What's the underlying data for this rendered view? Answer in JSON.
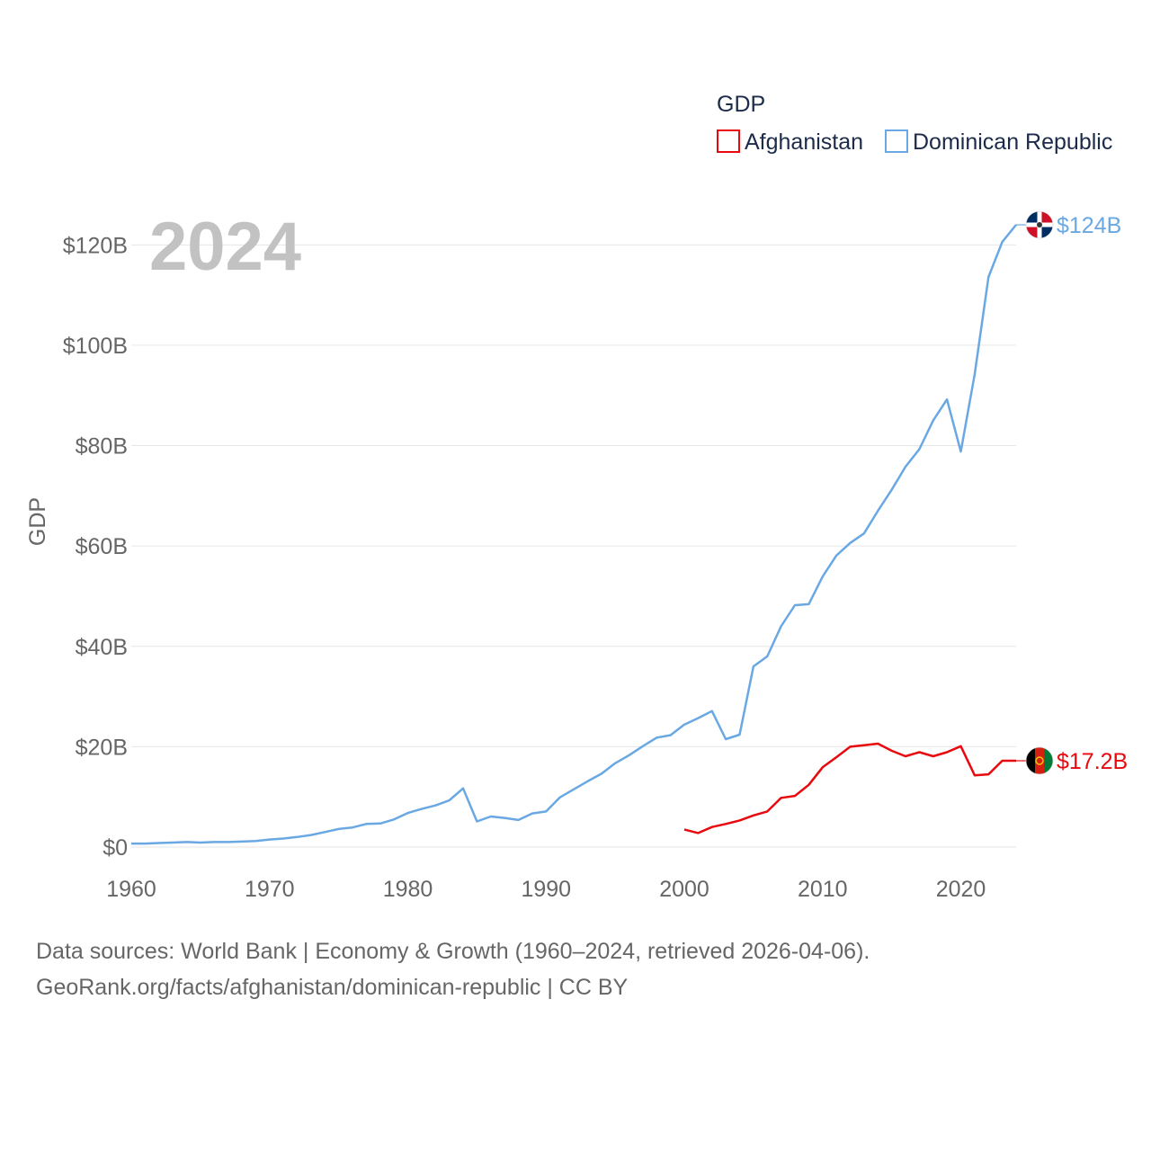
{
  "chart_data": {
    "type": "line",
    "title": "",
    "year_label": "2024",
    "ylabel": "GDP",
    "xlabel": "",
    "xlim": [
      1960,
      2024
    ],
    "ylim": [
      0,
      124
    ],
    "x_ticks": [
      1960,
      1970,
      1980,
      1990,
      2000,
      2010,
      2020
    ],
    "y_ticks": [
      {
        "value": 0,
        "label": "$0"
      },
      {
        "value": 20,
        "label": "$20B"
      },
      {
        "value": 40,
        "label": "$40B"
      },
      {
        "value": 60,
        "label": "$60B"
      },
      {
        "value": 80,
        "label": "$80B"
      },
      {
        "value": 100,
        "label": "$100B"
      },
      {
        "value": 120,
        "label": "$120B"
      }
    ],
    "legend": {
      "title": "GDP",
      "position": "top-right"
    },
    "series": [
      {
        "name": "Afghanistan",
        "color": "#e8090f",
        "end_label": "$17.2B",
        "flag": "afghanistan-flag-icon",
        "x": [
          2000,
          2001,
          2002,
          2003,
          2004,
          2005,
          2006,
          2007,
          2008,
          2009,
          2010,
          2011,
          2012,
          2013,
          2014,
          2015,
          2016,
          2017,
          2018,
          2019,
          2020,
          2021,
          2022,
          2023,
          2024
        ],
        "values": [
          3.5,
          2.8,
          4.0,
          4.6,
          5.3,
          6.3,
          7.1,
          9.8,
          10.2,
          12.4,
          15.9,
          17.9,
          20.0,
          20.3,
          20.6,
          19.2,
          18.1,
          18.9,
          18.1,
          18.9,
          20.1,
          14.3,
          14.5,
          17.2,
          17.2
        ]
      },
      {
        "name": "Dominican Republic",
        "color": "#6aa8e3",
        "end_label": "$124B",
        "flag": "dominican-republic-flag-icon",
        "x": [
          1960,
          1961,
          1962,
          1963,
          1964,
          1965,
          1966,
          1967,
          1968,
          1969,
          1970,
          1971,
          1972,
          1973,
          1974,
          1975,
          1976,
          1977,
          1978,
          1979,
          1980,
          1981,
          1982,
          1983,
          1984,
          1985,
          1986,
          1987,
          1988,
          1989,
          1990,
          1991,
          1992,
          1993,
          1994,
          1995,
          1996,
          1997,
          1998,
          1999,
          2000,
          2001,
          2002,
          2003,
          2004,
          2005,
          2006,
          2007,
          2008,
          2009,
          2010,
          2011,
          2012,
          2013,
          2014,
          2015,
          2016,
          2017,
          2018,
          2019,
          2020,
          2021,
          2022,
          2023,
          2024
        ],
        "values": [
          0.7,
          0.7,
          0.8,
          0.9,
          1.0,
          0.9,
          1.0,
          1.0,
          1.1,
          1.2,
          1.5,
          1.7,
          2.0,
          2.4,
          3.0,
          3.6,
          3.9,
          4.6,
          4.7,
          5.5,
          6.8,
          7.6,
          8.3,
          9.3,
          11.7,
          5.1,
          6.1,
          5.8,
          5.4,
          6.7,
          7.1,
          9.9,
          11.5,
          13.1,
          14.6,
          16.7,
          18.3,
          20.1,
          21.8,
          22.3,
          24.4,
          25.7,
          27.1,
          21.5,
          22.4,
          36.0,
          38.0,
          44.0,
          48.2,
          48.4,
          53.9,
          58.1,
          60.6,
          62.5,
          67.0,
          71.2,
          75.8,
          79.3,
          85.0,
          89.2,
          78.8,
          94.2,
          113.6,
          120.6,
          124.0
        ]
      }
    ]
  },
  "sources": {
    "line1": "Data sources: World Bank | Economy & Growth (1960–2024, retrieved 2026-04-06).",
    "line2": "GeoRank.org/facts/afghanistan/dominican-republic | CC BY"
  }
}
